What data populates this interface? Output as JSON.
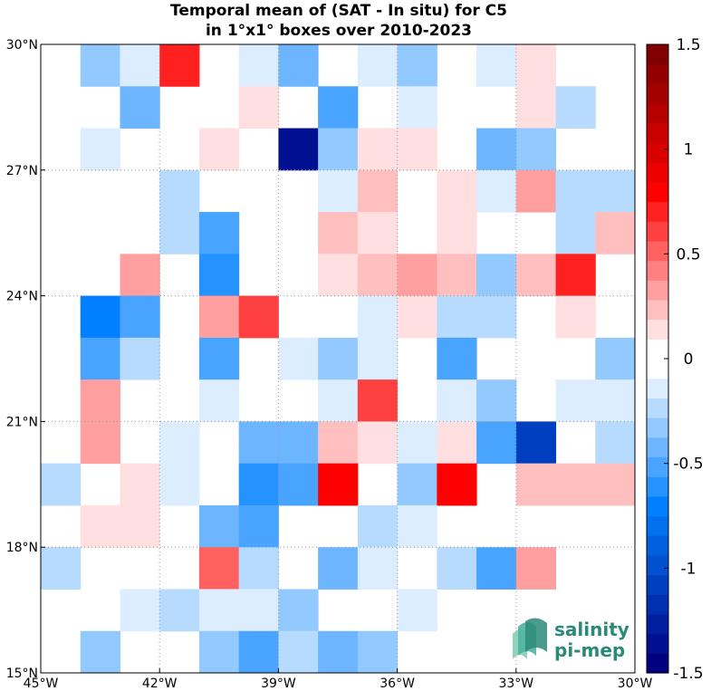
{
  "chart_data": {
    "type": "heatmap",
    "title_line1": "Temporal mean of (SAT - In situ) for C5",
    "title_line2": "in 1°x1° boxes over 2010-2023",
    "lon_ticks": [
      {
        "value": -45,
        "label": "45°W"
      },
      {
        "value": -42,
        "label": "42°W"
      },
      {
        "value": -39,
        "label": "39°W"
      },
      {
        "value": -36,
        "label": "36°W"
      },
      {
        "value": -33,
        "label": "33°W"
      },
      {
        "value": -30,
        "label": "30°W"
      }
    ],
    "lat_ticks": [
      {
        "value": 15,
        "label": "15°N"
      },
      {
        "value": 18,
        "label": "18°N"
      },
      {
        "value": 21,
        "label": "21°N"
      },
      {
        "value": 24,
        "label": "24°N"
      },
      {
        "value": 27,
        "label": "27°N"
      },
      {
        "value": 30,
        "label": "30°N"
      }
    ],
    "xlim": [
      -45,
      -30
    ],
    "ylim": [
      15,
      30
    ],
    "grid": true,
    "colorbar": {
      "range": [
        -1.5,
        1.5
      ],
      "levels": 32,
      "ticks": [
        {
          "value": 1.5,
          "label": "1.5"
        },
        {
          "value": 1,
          "label": "1"
        },
        {
          "value": 0.5,
          "label": "0.5"
        },
        {
          "value": 0,
          "label": "0"
        },
        {
          "value": -0.5,
          "label": "-0.5"
        },
        {
          "value": -1,
          "label": "-1"
        },
        {
          "value": -1.5,
          "label": "-1.5"
        }
      ]
    },
    "grid_lon_start": -45,
    "grid_lat_top": 30,
    "values": [
      [
        null,
        -0.3,
        -0.15,
        0.7,
        null,
        -0.15,
        -0.45,
        null,
        -0.15,
        -0.3,
        null,
        -0.1,
        0.1,
        null,
        null
      ],
      [
        null,
        null,
        -0.4,
        null,
        null,
        0.1,
        null,
        -0.5,
        null,
        -0.1,
        null,
        null,
        0.1,
        -0.2,
        null
      ],
      [
        null,
        -0.1,
        null,
        null,
        0.1,
        null,
        -1.4,
        -0.3,
        0.15,
        0.15,
        null,
        -0.45,
        -0.35,
        null,
        null
      ],
      [
        null,
        null,
        null,
        -0.2,
        null,
        null,
        null,
        -0.15,
        0.25,
        null,
        0.1,
        -0.1,
        0.35,
        -0.2,
        -0.2
      ],
      [
        null,
        null,
        null,
        -0.2,
        -0.5,
        null,
        null,
        0.25,
        0.1,
        null,
        0.1,
        null,
        null,
        -0.2,
        0.25
      ],
      [
        null,
        null,
        0.35,
        null,
        -0.6,
        null,
        null,
        0.1,
        0.25,
        0.35,
        0.25,
        -0.35,
        0.25,
        0.7,
        null
      ],
      [
        null,
        -0.7,
        -0.5,
        null,
        0.35,
        0.65,
        null,
        null,
        -0.1,
        0.15,
        -0.2,
        -0.2,
        null,
        0.1,
        null
      ],
      [
        null,
        -0.5,
        -0.2,
        null,
        -0.5,
        null,
        -0.15,
        -0.3,
        -0.1,
        null,
        -0.5,
        null,
        null,
        null,
        -0.3
      ],
      [
        null,
        0.3,
        null,
        null,
        -0.15,
        null,
        null,
        -0.1,
        0.65,
        null,
        -0.1,
        -0.3,
        null,
        -0.1,
        -0.1
      ],
      [
        null,
        0.3,
        null,
        -0.1,
        null,
        -0.4,
        -0.4,
        0.25,
        0.1,
        -0.1,
        0.1,
        -0.5,
        -1.1,
        null,
        -0.2
      ],
      [
        -0.2,
        null,
        0.1,
        -0.1,
        null,
        -0.6,
        -0.5,
        0.8,
        null,
        -0.3,
        0.75,
        null,
        0.2,
        0.2,
        0.2
      ],
      [
        null,
        0.1,
        0.1,
        null,
        -0.4,
        -0.5,
        null,
        null,
        -0.2,
        -0.1,
        null,
        null,
        null,
        null,
        null
      ],
      [
        -0.2,
        null,
        null,
        null,
        0.5,
        -0.25,
        null,
        -0.4,
        -0.1,
        null,
        -0.25,
        -0.5,
        0.35,
        null,
        null
      ],
      [
        null,
        null,
        -0.15,
        -0.25,
        -0.1,
        -0.1,
        -0.35,
        null,
        null,
        -0.1,
        null,
        null,
        null,
        null,
        null
      ],
      [
        null,
        -0.3,
        null,
        null,
        -0.3,
        -0.5,
        -0.25,
        -0.4,
        -0.3,
        null,
        null,
        null,
        null,
        null,
        null
      ]
    ]
  },
  "logo": {
    "line1": "salinity",
    "line2": "pi-mep"
  }
}
